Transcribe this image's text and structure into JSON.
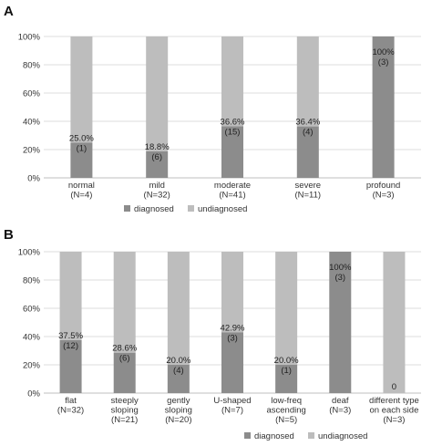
{
  "panels": [
    {
      "letter": "A",
      "legend": {
        "labels": [
          "diagnosed",
          "undiagnosed"
        ]
      },
      "chart_data": {
        "type": "bar",
        "stacked": true,
        "categories": [
          [
            "normal",
            "(N=4)"
          ],
          [
            "mild",
            "(N=32)"
          ],
          [
            "moderate",
            "(N=41)"
          ],
          [
            "severe",
            "(N=11)"
          ],
          [
            "profound",
            "(N=3)"
          ]
        ],
        "series": [
          {
            "name": "diagnosed",
            "values": [
              25.0,
              18.8,
              36.6,
              36.4,
              100
            ],
            "color": "#8c8c8c"
          },
          {
            "name": "undiagnosed",
            "values": [
              75.0,
              81.2,
              63.4,
              63.6,
              0
            ],
            "color": "#bdbdbd"
          }
        ],
        "data_labels": [
          [
            "25.0%",
            "(1)"
          ],
          [
            "18.8%",
            "(6)"
          ],
          [
            "36.6%",
            "(15)"
          ],
          [
            "36.4%",
            "(4)"
          ],
          [
            "100%",
            "(3)"
          ]
        ],
        "yticks": [
          "0%",
          "20%",
          "40%",
          "60%",
          "80%",
          "100%"
        ],
        "ylim": [
          0,
          100
        ],
        "grid": true,
        "legend_position": "bottom"
      }
    },
    {
      "letter": "B",
      "legend": {
        "labels": [
          "diagnosed",
          "undiagnosed"
        ]
      },
      "chart_data": {
        "type": "bar",
        "stacked": true,
        "categories": [
          [
            "flat",
            "(N=32)"
          ],
          [
            "steeply",
            "sloping",
            "(N=21)"
          ],
          [
            "gently",
            "sloping",
            "(N=20)"
          ],
          [
            "U-shaped",
            "(N=7)"
          ],
          [
            "low-freq",
            "ascending",
            "(N=5)"
          ],
          [
            "deaf",
            "(N=3)"
          ],
          [
            "different type",
            "on each side",
            "(N=3)"
          ]
        ],
        "series": [
          {
            "name": "diagnosed",
            "values": [
              37.5,
              28.6,
              20.0,
              42.9,
              20.0,
              100,
              0
            ],
            "color": "#8c8c8c"
          },
          {
            "name": "undiagnosed",
            "values": [
              62.5,
              71.4,
              80.0,
              57.1,
              80.0,
              0,
              100
            ],
            "color": "#bdbdbd"
          }
        ],
        "data_labels": [
          [
            "37.5%",
            "(12)"
          ],
          [
            "28.6%",
            "(6)"
          ],
          [
            "20.0%",
            "(4)"
          ],
          [
            "42.9%",
            "(3)"
          ],
          [
            "20.0%",
            "(1)"
          ],
          [
            "100%",
            "(3)"
          ],
          [
            "0"
          ]
        ],
        "yticks": [
          "0%",
          "20%",
          "40%",
          "60%",
          "80%",
          "100%"
        ],
        "ylim": [
          0,
          100
        ],
        "grid": true,
        "legend_position": "bottom"
      }
    }
  ]
}
